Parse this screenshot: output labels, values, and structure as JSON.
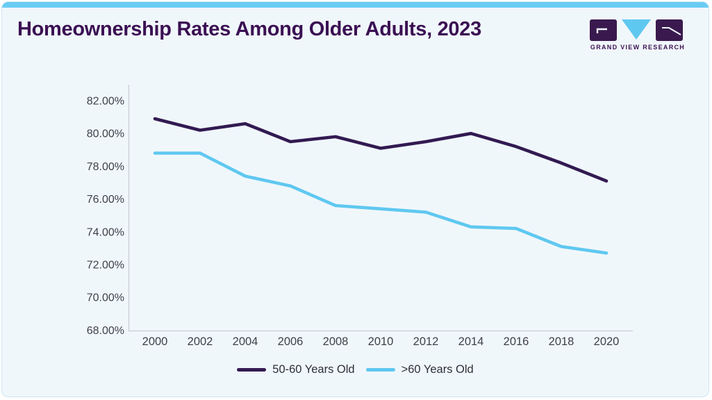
{
  "page": {
    "title": "Homeownership Rates Among Older Adults, 2023",
    "brand": {
      "name": "GRAND VIEW RESEARCH"
    },
    "colors": {
      "accent_bar": "#69ccf4",
      "card_bg": "#f0f7fb",
      "card_border": "#c9e6f5",
      "title_text": "#3b1053",
      "axis_line": "#c9ccd4",
      "tick_text": "#3f4049",
      "legend_text": "#2e2f38"
    }
  },
  "chart_data": {
    "type": "line",
    "title": "Homeownership Rates Among Older Adults, 2023",
    "categories": [
      "2000",
      "2002",
      "2004",
      "2006",
      "2008",
      "2010",
      "2012",
      "2014",
      "2016",
      "2018",
      "2020"
    ],
    "series": [
      {
        "name": "50-60 Years Old",
        "color": "#321a52",
        "values": [
          80.9,
          80.2,
          80.6,
          79.5,
          79.8,
          79.1,
          79.5,
          80.0,
          79.2,
          78.2,
          77.1
        ]
      },
      {
        "name": ">60 Years Old",
        "color": "#5fc8f0",
        "values": [
          78.8,
          78.8,
          77.4,
          76.8,
          75.6,
          75.4,
          75.2,
          74.3,
          74.2,
          73.1,
          72.7
        ]
      }
    ],
    "xlabel": "",
    "ylabel": "",
    "y_ticks": [
      "82.00%",
      "80.00%",
      "78.00%",
      "76.00%",
      "74.00%",
      "72.00%",
      "70.00%",
      "68.00%"
    ],
    "ylim": [
      68,
      82
    ],
    "grid": false,
    "legend_position": "bottom"
  }
}
